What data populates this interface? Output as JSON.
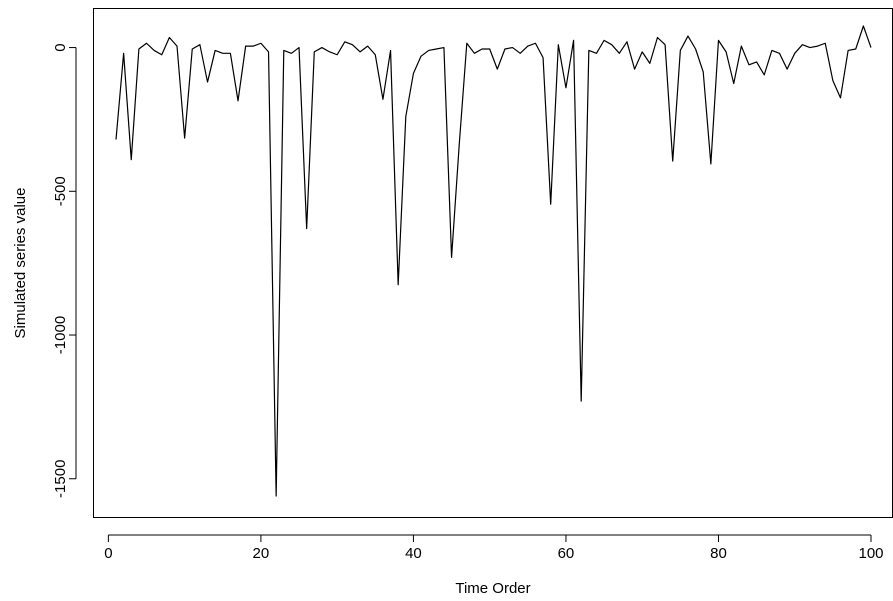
{
  "chart_data": {
    "type": "line",
    "title": "",
    "xlabel": "Time Order",
    "ylabel": "Simulated series value",
    "xlim": [
      1,
      100
    ],
    "ylim": [
      -1560,
      75
    ],
    "xticks": [
      0,
      20,
      40,
      60,
      80,
      100
    ],
    "yticks": [
      0,
      -500,
      -1000,
      -1500
    ],
    "xtick_labels": [
      "0",
      "20",
      "40",
      "60",
      "80",
      "100"
    ],
    "ytick_labels": [
      "0",
      "-500",
      "-1000",
      "-1500"
    ],
    "grid": false,
    "legend": "none",
    "line_color": "#000000",
    "x": [
      1,
      2,
      3,
      4,
      5,
      6,
      7,
      8,
      9,
      10,
      11,
      12,
      13,
      14,
      15,
      16,
      17,
      18,
      19,
      20,
      21,
      22,
      23,
      24,
      25,
      26,
      27,
      28,
      29,
      30,
      31,
      32,
      33,
      34,
      35,
      36,
      37,
      38,
      39,
      40,
      41,
      42,
      43,
      44,
      45,
      46,
      47,
      48,
      49,
      50,
      51,
      52,
      53,
      54,
      55,
      56,
      57,
      58,
      59,
      60,
      61,
      62,
      63,
      64,
      65,
      66,
      67,
      68,
      69,
      70,
      71,
      72,
      73,
      74,
      75,
      76,
      77,
      78,
      79,
      80,
      81,
      82,
      83,
      84,
      85,
      86,
      87,
      88,
      89,
      90,
      91,
      92,
      93,
      94,
      95,
      96,
      97,
      98,
      99,
      100
    ],
    "series": [
      {
        "values": [
          -320,
          -20,
          -390,
          -5,
          15,
          -10,
          -25,
          35,
          5,
          -315,
          -5,
          10,
          -120,
          -10,
          -20,
          -20,
          -185,
          5,
          5,
          15,
          -15,
          -1560,
          -10,
          -20,
          0,
          -630,
          -15,
          0,
          -15,
          -25,
          20,
          10,
          -15,
          5,
          -25,
          -180,
          -10,
          -825,
          -240,
          -90,
          -30,
          -10,
          -5,
          0,
          -730,
          -340,
          15,
          -20,
          -5,
          -5,
          -75,
          -5,
          0,
          -20,
          5,
          15,
          -35,
          -545,
          10,
          -140,
          25,
          -1230,
          -10,
          -20,
          25,
          10,
          -20,
          20,
          -75,
          -15,
          -55,
          35,
          10,
          -395,
          -10,
          40,
          -5,
          -85,
          -405,
          25,
          -15,
          -125,
          5,
          -60,
          -50,
          -95,
          -10,
          -20,
          -75,
          -20,
          10,
          0,
          5,
          15,
          -115,
          -175,
          -10,
          -5,
          75,
          0
        ]
      }
    ]
  }
}
